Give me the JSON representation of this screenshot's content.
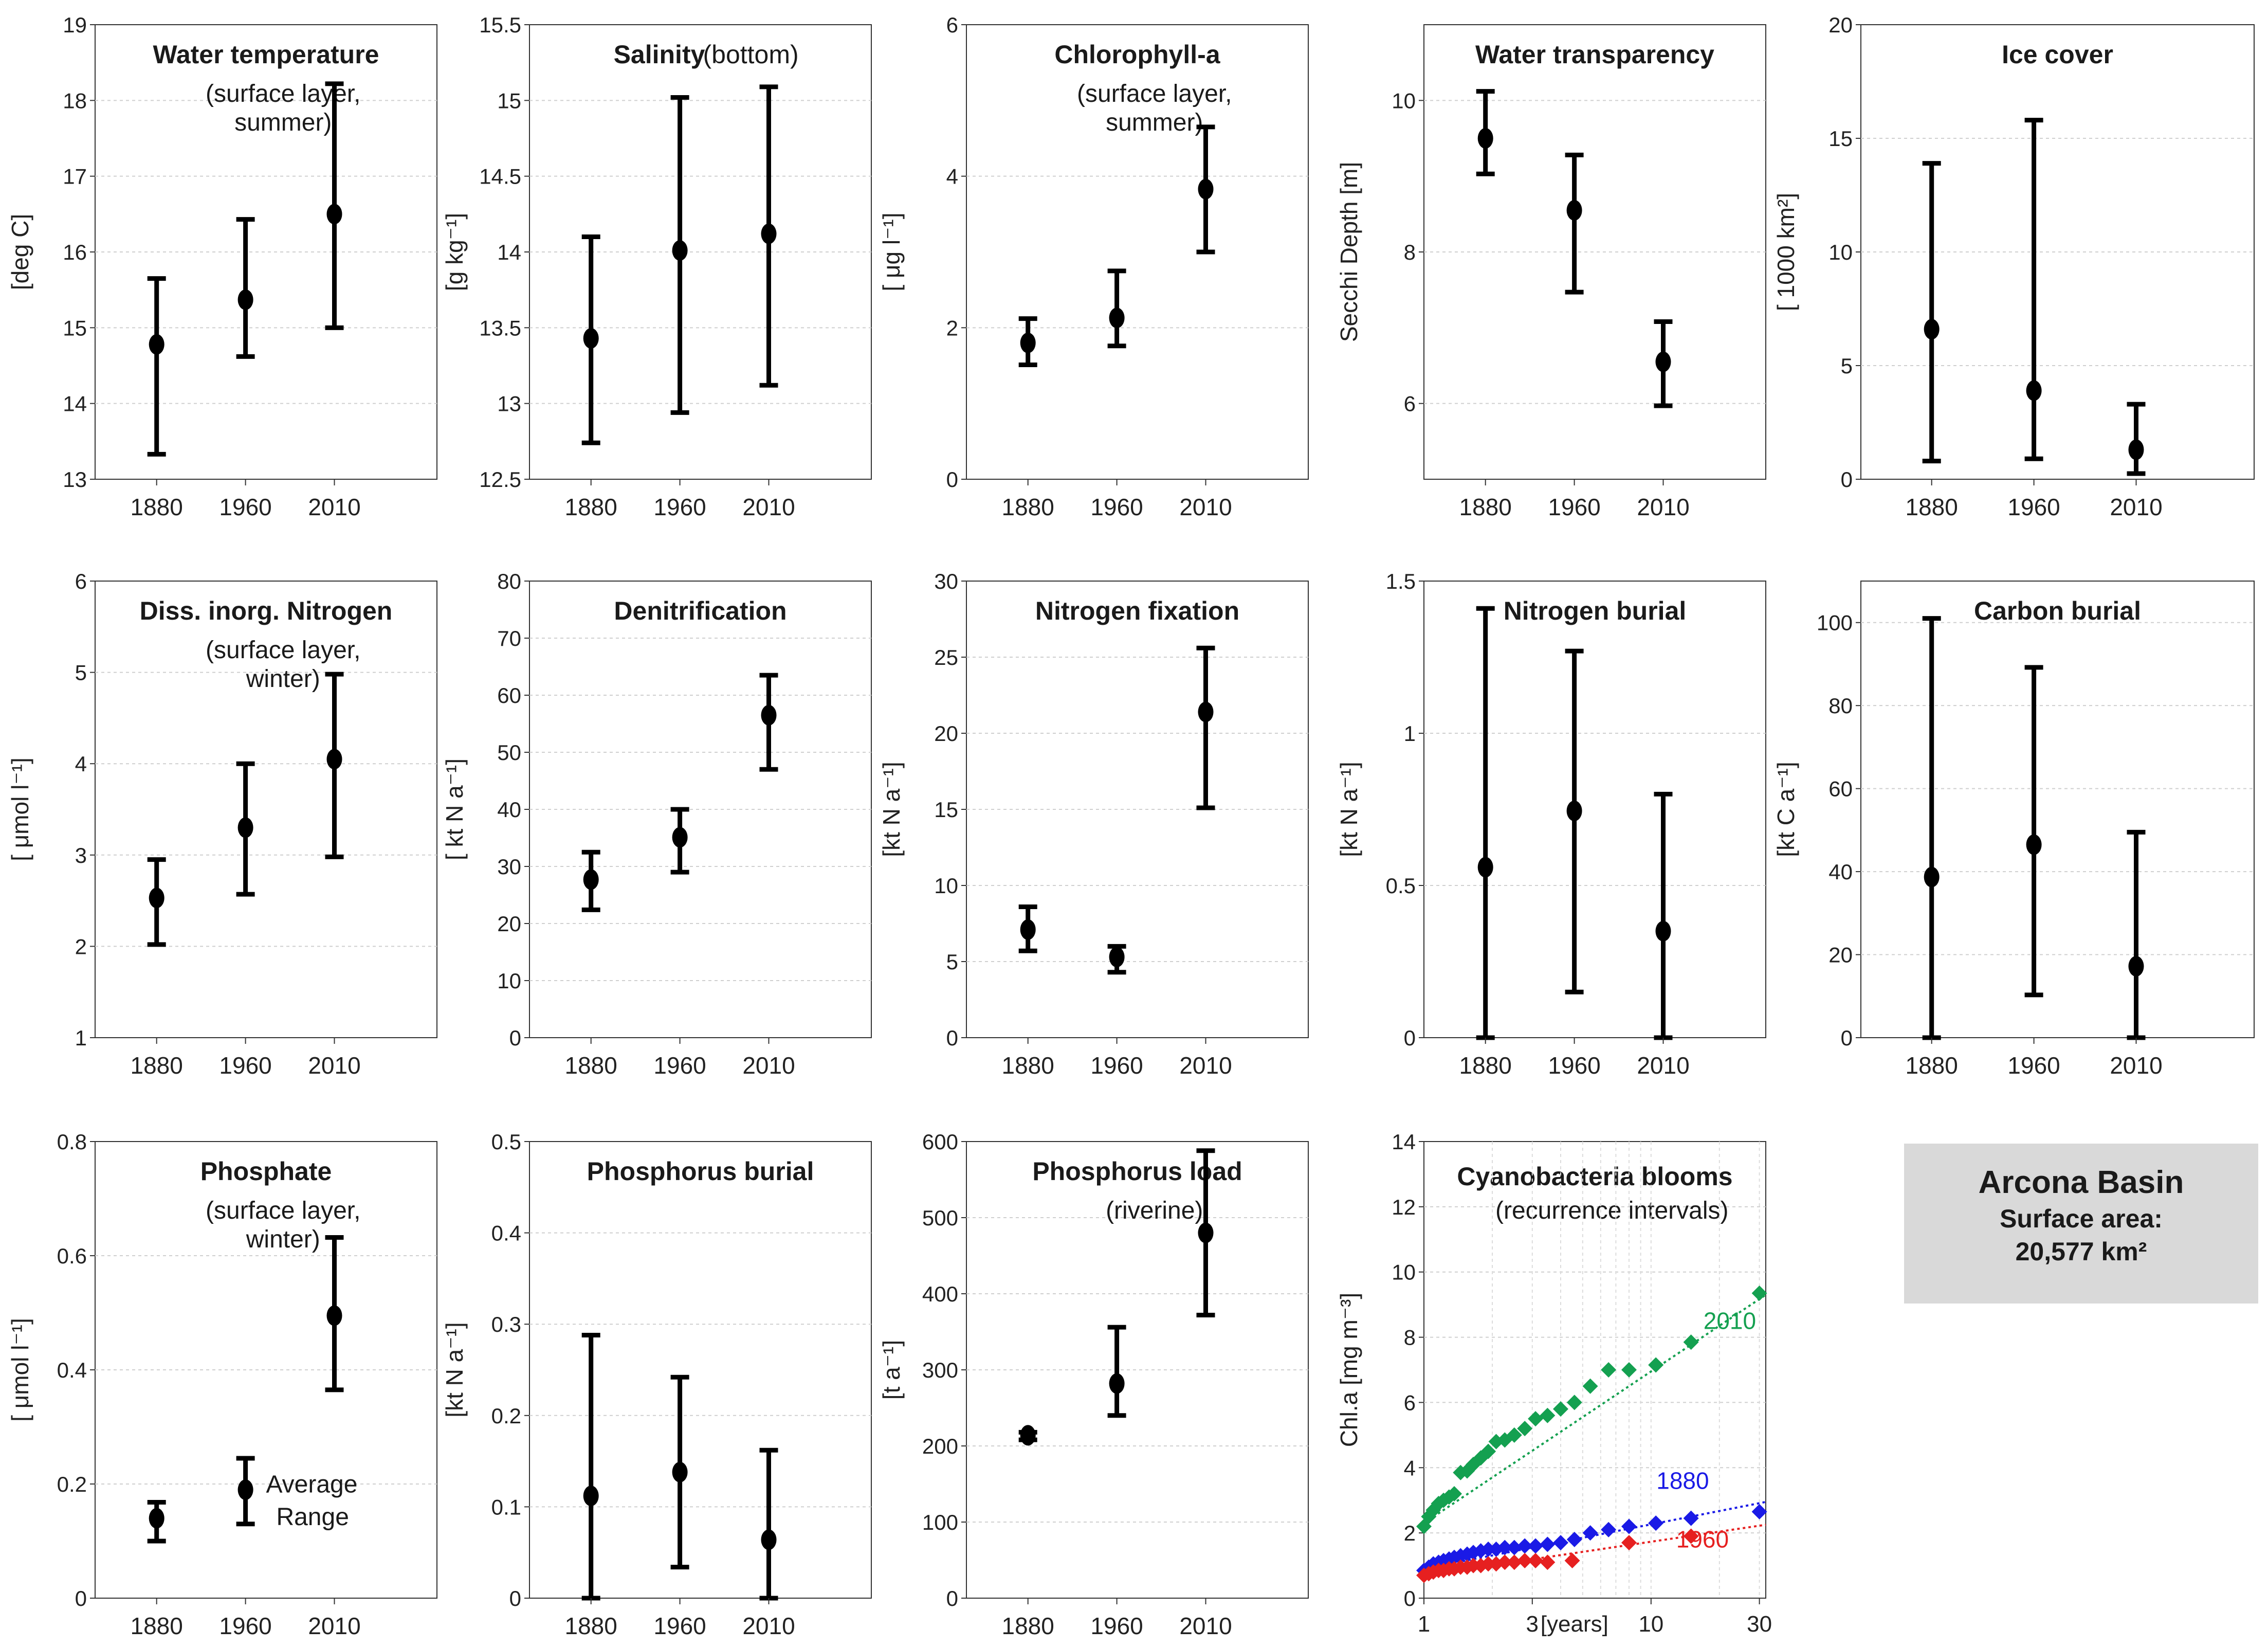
{
  "figure": {
    "title": "Arcona Basin"
  },
  "chart_data": [
    {
      "type": "errorbar",
      "title": "Water temperature",
      "title_suffix": "",
      "subtitle": [
        "(surface layer,",
        "summer)"
      ],
      "ylabel": "[deg C]",
      "ylim": [
        13,
        19
      ],
      "yticks": [
        13,
        14,
        15,
        16,
        17,
        18,
        19
      ],
      "categories": [
        "1880",
        "1960",
        "2010"
      ],
      "values": [
        14.78,
        15.37,
        16.5
      ],
      "low": [
        13.33,
        14.62,
        15.0
      ],
      "high": [
        15.65,
        16.43,
        18.22
      ]
    },
    {
      "type": "errorbar",
      "title": "Salinity",
      "title_suffix": "(bottom)",
      "subtitle": [],
      "ylabel": "[g kg⁻¹]",
      "ylim": [
        12.5,
        15.5
      ],
      "yticks": [
        12.5,
        13,
        13.5,
        14,
        14.5,
        15,
        15.5
      ],
      "categories": [
        "1880",
        "1960",
        "2010"
      ],
      "values": [
        13.43,
        14.01,
        14.12
      ],
      "low": [
        12.74,
        12.94,
        13.12
      ],
      "high": [
        14.1,
        15.02,
        15.09
      ]
    },
    {
      "type": "errorbar",
      "title": "Chlorophyll-a",
      "title_suffix": "",
      "subtitle": [
        "(surface layer,",
        "summer)"
      ],
      "ylabel": "[ μg l⁻¹]",
      "ylim": [
        0,
        6
      ],
      "yticks": [
        0,
        2,
        4,
        6
      ],
      "categories": [
        "1880",
        "1960",
        "2010"
      ],
      "values": [
        1.8,
        2.13,
        3.83
      ],
      "low": [
        1.51,
        1.76,
        3.0
      ],
      "high": [
        2.12,
        2.75,
        4.65
      ]
    },
    {
      "type": "errorbar",
      "title": "Water transparency",
      "title_suffix": "",
      "subtitle": [],
      "ylabel": "Secchi Depth [m]",
      "ylim": [
        5,
        11
      ],
      "yticks": [
        6,
        8,
        10
      ],
      "categories": [
        "1880",
        "1960",
        "2010"
      ],
      "values": [
        9.5,
        8.55,
        6.55
      ],
      "low": [
        9.03,
        7.47,
        5.97
      ],
      "high": [
        10.12,
        9.28,
        7.08
      ]
    },
    {
      "type": "errorbar",
      "title": "Ice cover",
      "title_suffix": "",
      "subtitle": [],
      "ylabel": "[ 1000 km²]",
      "ylim": [
        0,
        20
      ],
      "yticks": [
        0,
        5,
        10,
        15,
        20
      ],
      "categories": [
        "1880",
        "1960",
        "2010"
      ],
      "values": [
        6.6,
        3.9,
        1.3
      ],
      "low": [
        0.8,
        0.9,
        0.25
      ],
      "high": [
        13.9,
        15.8,
        3.3
      ]
    },
    {
      "type": "errorbar",
      "title": "Diss. inorg. Nitrogen",
      "title_suffix": "",
      "subtitle": [
        "(surface layer,",
        "winter)"
      ],
      "ylabel": "[ μmol l⁻¹]",
      "ylim": [
        1,
        6
      ],
      "yticks": [
        1,
        2,
        3,
        4,
        5,
        6
      ],
      "categories": [
        "1880",
        "1960",
        "2010"
      ],
      "values": [
        2.53,
        3.3,
        4.05
      ],
      "low": [
        2.02,
        2.57,
        2.98
      ],
      "high": [
        2.95,
        4.0,
        4.98
      ]
    },
    {
      "type": "errorbar",
      "title": "Denitrification",
      "title_suffix": "",
      "subtitle": [],
      "ylabel": "[ kt N a⁻¹]",
      "ylim": [
        0,
        80
      ],
      "yticks": [
        0,
        10,
        20,
        30,
        40,
        50,
        60,
        70,
        80
      ],
      "categories": [
        "1880",
        "1960",
        "2010"
      ],
      "values": [
        27.7,
        35.1,
        56.5
      ],
      "low": [
        22.4,
        29.0,
        47.0
      ],
      "high": [
        32.5,
        40.0,
        63.5
      ]
    },
    {
      "type": "errorbar",
      "title": "Nitrogen fixation",
      "title_suffix": "",
      "subtitle": [],
      "ylabel": "[kt N a⁻¹]",
      "ylim": [
        0,
        30
      ],
      "yticks": [
        0,
        5,
        10,
        15,
        20,
        25,
        30
      ],
      "categories": [
        "1880",
        "1960",
        "2010"
      ],
      "values": [
        7.1,
        5.3,
        21.4
      ],
      "low": [
        5.7,
        4.3,
        15.1
      ],
      "high": [
        8.6,
        6.0,
        25.6
      ]
    },
    {
      "type": "errorbar",
      "title": "Nitrogen burial",
      "title_suffix": "",
      "subtitle": [],
      "ylabel": "[kt N a⁻¹]",
      "ylim": [
        0,
        1.5
      ],
      "yticks": [
        0,
        0.5,
        1,
        1.5
      ],
      "categories": [
        "1880",
        "1960",
        "2010"
      ],
      "values": [
        0.56,
        0.745,
        0.35
      ],
      "low": [
        0,
        0.15,
        0
      ],
      "high": [
        1.41,
        1.27,
        0.8
      ]
    },
    {
      "type": "errorbar",
      "title": "Carbon burial",
      "title_suffix": "",
      "subtitle": [],
      "ylabel": "[kt C a⁻¹]",
      "ylim": [
        0,
        110
      ],
      "yticks": [
        0,
        20,
        40,
        60,
        80,
        100
      ],
      "categories": [
        "1880",
        "1960",
        "2010"
      ],
      "values": [
        38.7,
        46.5,
        17.2
      ],
      "low": [
        0,
        10.3,
        0
      ],
      "high": [
        101,
        89.2,
        49.5
      ]
    },
    {
      "type": "errorbar",
      "title": "Phosphate",
      "title_suffix": "",
      "subtitle": [
        "(surface layer,",
        "winter)"
      ],
      "ylabel": "[ μmol l⁻¹]",
      "ylim": [
        0,
        0.8
      ],
      "yticks": [
        0,
        0.2,
        0.4,
        0.6,
        0.8
      ],
      "categories": [
        "1880",
        "1960",
        "2010"
      ],
      "values": [
        0.14,
        0.19,
        0.495
      ],
      "low": [
        0.1,
        0.13,
        0.365
      ],
      "high": [
        0.168,
        0.245,
        0.632
      ],
      "legend": [
        "Average",
        "Range"
      ]
    },
    {
      "type": "errorbar",
      "title": "Phosphorus burial",
      "title_suffix": "",
      "subtitle": [],
      "ylabel": "[kt N a⁻¹]",
      "ylim": [
        0,
        0.5
      ],
      "yticks": [
        0,
        0.1,
        0.2,
        0.3,
        0.4,
        0.5
      ],
      "categories": [
        "1880",
        "1960",
        "2010"
      ],
      "values": [
        0.112,
        0.138,
        0.064
      ],
      "low": [
        0,
        0.034,
        0
      ],
      "high": [
        0.288,
        0.242,
        0.162
      ]
    },
    {
      "type": "errorbar",
      "title": "Phosphorus load",
      "title_suffix": "",
      "subtitle": [
        "(riverine)"
      ],
      "ylabel": "[t a⁻¹]",
      "ylim": [
        0,
        600
      ],
      "yticks": [
        0,
        100,
        200,
        300,
        400,
        500,
        600
      ],
      "categories": [
        "1880",
        "1960",
        "2010"
      ],
      "values": [
        214,
        282,
        480
      ],
      "low": [
        208,
        240,
        372
      ],
      "high": [
        218,
        356,
        588
      ]
    },
    {
      "type": "scatter",
      "xscale": "log",
      "title": "Cyanobacteria blooms",
      "subtitle": [
        "(recurrence intervals)"
      ],
      "ylabel": "Chl.a [mg m⁻³]",
      "xlabel": "[years]",
      "xlim": [
        1,
        32
      ],
      "ylim": [
        0,
        14
      ],
      "xticks": [
        1,
        3,
        10,
        30
      ],
      "yticks": [
        0,
        2,
        4,
        6,
        8,
        10,
        12,
        14
      ],
      "series": [
        {
          "name": "2010",
          "color": "#14a050",
          "x": [
            1.0,
            1.05,
            1.1,
            1.16,
            1.22,
            1.29,
            1.36,
            1.45,
            1.55,
            1.65,
            1.78,
            1.92,
            2.08,
            2.27,
            2.5,
            2.78,
            3.1,
            3.5,
            4.0,
            4.6,
            5.4,
            6.5,
            8.0,
            10.5,
            15.0,
            30.0
          ],
          "y": [
            2.2,
            2.5,
            2.7,
            2.9,
            3.0,
            3.1,
            3.2,
            3.85,
            3.9,
            4.1,
            4.3,
            4.5,
            4.8,
            4.85,
            5.0,
            5.2,
            5.5,
            5.6,
            5.8,
            6.0,
            6.5,
            7.0,
            7.0,
            7.15,
            7.85,
            9.35
          ],
          "trend": [
            2.3,
            9.3
          ]
        },
        {
          "name": "1880",
          "color": "#1a1ae6",
          "x": [
            1.0,
            1.05,
            1.1,
            1.16,
            1.22,
            1.29,
            1.36,
            1.45,
            1.55,
            1.65,
            1.78,
            1.92,
            2.08,
            2.27,
            2.5,
            2.78,
            3.1,
            3.5,
            4.0,
            4.6,
            5.4,
            6.5,
            8.0,
            10.5,
            15.0,
            30.0
          ],
          "y": [
            0.85,
            0.95,
            1.05,
            1.1,
            1.15,
            1.2,
            1.25,
            1.3,
            1.35,
            1.4,
            1.45,
            1.5,
            1.5,
            1.55,
            1.55,
            1.6,
            1.6,
            1.65,
            1.7,
            1.8,
            2.0,
            2.1,
            2.2,
            2.3,
            2.45,
            2.65
          ],
          "trend": [
            0.9,
            2.95
          ]
        },
        {
          "name": "1960",
          "color": "#e62020",
          "x": [
            1.0,
            1.05,
            1.1,
            1.16,
            1.22,
            1.29,
            1.36,
            1.45,
            1.55,
            1.65,
            1.78,
            1.92,
            2.08,
            2.27,
            2.5,
            2.78,
            3.1,
            3.5,
            4.5,
            8.0,
            15.0
          ],
          "y": [
            0.7,
            0.75,
            0.8,
            0.85,
            0.85,
            0.9,
            0.9,
            0.95,
            0.95,
            1.0,
            1.0,
            1.05,
            1.05,
            1.1,
            1.1,
            1.15,
            1.15,
            1.1,
            1.15,
            1.7,
            1.9
          ],
          "trend": [
            0.7,
            2.25
          ]
        }
      ]
    }
  ],
  "info_box": {
    "title": "Arcona Basin",
    "line1": "Surface area:",
    "line2": "20,577 km²"
  },
  "colors": {
    "marker": "#000000",
    "axis": "#333333",
    "grid": "#cccccc",
    "text": "#1a1a1a",
    "info_bg": "#d9d9d9"
  }
}
